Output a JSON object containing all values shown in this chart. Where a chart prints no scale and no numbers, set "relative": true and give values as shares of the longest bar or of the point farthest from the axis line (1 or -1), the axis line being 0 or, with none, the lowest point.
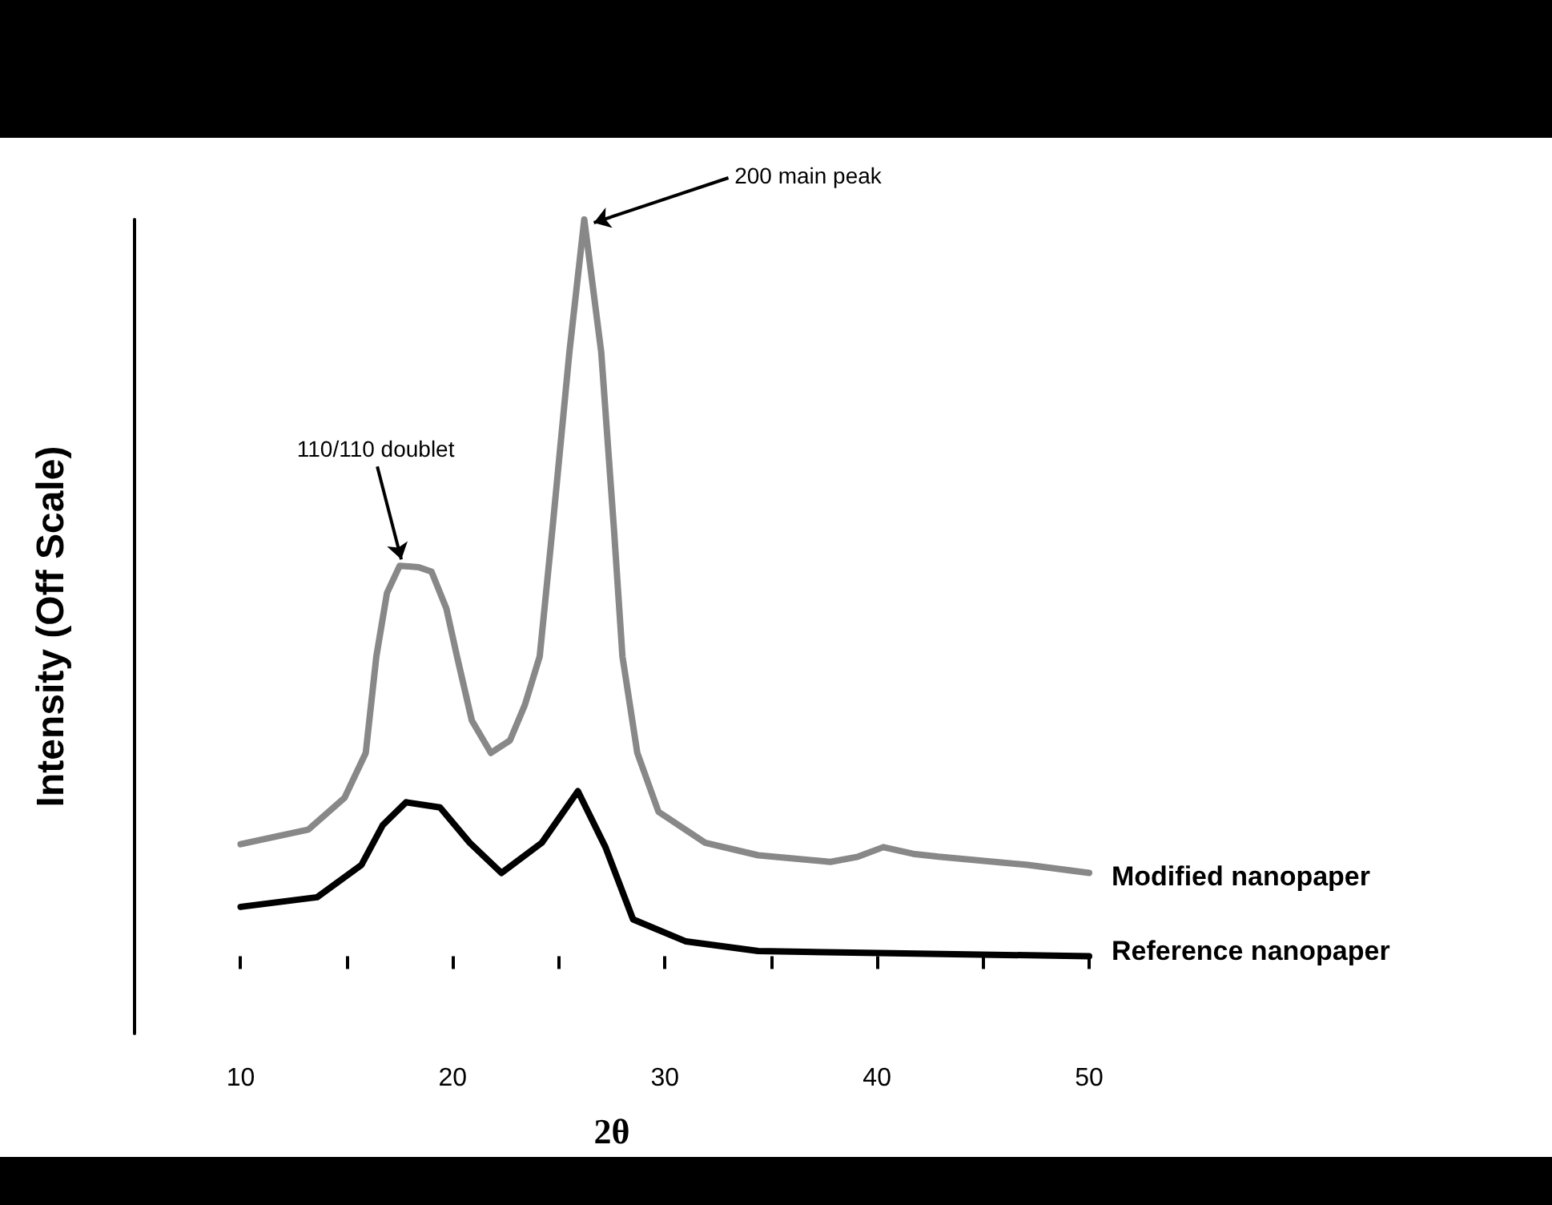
{
  "chart_data": {
    "type": "line",
    "relative": true,
    "xlabel": "2θ",
    "ylabel": "Intensity (Off Scale)",
    "xlim": [
      5,
      50
    ],
    "xticks": [
      {
        "value": 5,
        "label": null
      },
      10,
      {
        "value": 15,
        "label": null
      },
      20,
      {
        "value": 25,
        "label": null
      },
      30,
      {
        "value": 35,
        "label": null
      },
      40,
      {
        "value": 45,
        "label": null
      },
      50
    ],
    "grid": false,
    "legend": "right",
    "marker": "none",
    "line_style": "solid",
    "annotations": [
      {
        "text": "200 main peak",
        "x": 26.2,
        "y": 1.0
      },
      {
        "text": "110/110 doublet",
        "x": 17.5,
        "y": 0.53
      }
    ],
    "series": [
      {
        "name": "Modified nanopaper",
        "color": "#888888",
        "x": [
          10,
          13.2,
          14.9,
          15.9,
          16.4,
          16.9,
          17.5,
          18.4,
          19.0,
          19.7,
          20.2,
          20.9,
          21.8,
          22.7,
          23.4,
          24.1,
          24.7,
          25.5,
          26.2,
          27.0,
          27.6,
          28.0,
          28.7,
          29.7,
          31.9,
          34.4,
          37.8,
          39.1,
          40.3,
          41.7,
          42.9,
          47.1,
          50
        ],
        "values": [
          0.152,
          0.172,
          0.215,
          0.276,
          0.407,
          0.493,
          0.53,
          0.528,
          0.522,
          0.472,
          0.407,
          0.32,
          0.276,
          0.293,
          0.341,
          0.407,
          0.58,
          0.82,
          1.0,
          0.82,
          0.58,
          0.407,
          0.276,
          0.196,
          0.154,
          0.137,
          0.128,
          0.135,
          0.148,
          0.139,
          0.135,
          0.124,
          0.113
        ]
      },
      {
        "name": "Reference nanopaper",
        "color": "#000000",
        "x": [
          10,
          13.6,
          15.7,
          16.7,
          17.8,
          19.4,
          20.8,
          22.3,
          24.2,
          25.9,
          27.2,
          28.5,
          31.0,
          34.4,
          40.7,
          50
        ],
        "values": [
          0.067,
          0.08,
          0.124,
          0.178,
          0.209,
          0.202,
          0.154,
          0.113,
          0.154,
          0.224,
          0.148,
          0.05,
          0.02,
          0.007,
          0.004,
          0
        ]
      }
    ]
  }
}
